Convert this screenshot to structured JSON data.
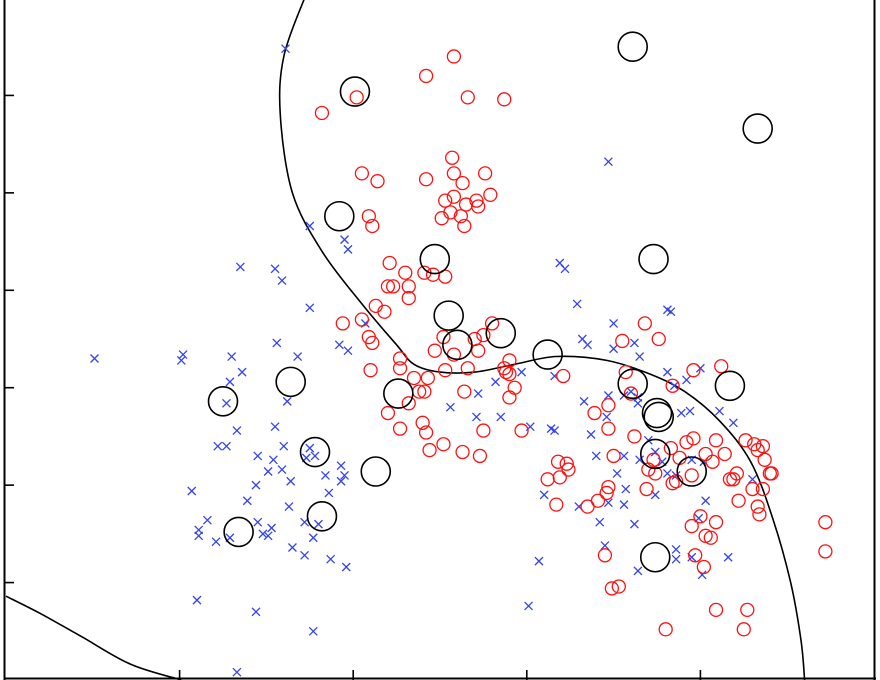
{
  "chart_data": {
    "type": "scatter",
    "title": "",
    "xlabel": "",
    "ylabel": "",
    "xlim": [
      0.0,
      5.0
    ],
    "ylim": [
      0.0,
      3.5
    ],
    "grid": false,
    "colors": {
      "class_x": "#3344ee",
      "class_o": "#ff1111",
      "support_ring": "#000000",
      "boundary": "#000000",
      "frame": "#000000"
    },
    "series": [
      {
        "marker": "x",
        "points": [
          [
            0.51,
            1.65
          ],
          [
            1.02,
            1.67
          ],
          [
            1.01,
            1.64
          ],
          [
            1.3,
            1.66
          ],
          [
            1.29,
            1.53
          ],
          [
            1.36,
            1.58
          ],
          [
            1.27,
            1.42
          ],
          [
            1.33,
            1.28
          ],
          [
            1.35,
            2.12
          ],
          [
            1.55,
            2.11
          ],
          [
            1.56,
            1.73
          ],
          [
            1.68,
            1.66
          ],
          [
            1.59,
            2.05
          ],
          [
            1.75,
            1.91
          ],
          [
            1.62,
            1.43
          ],
          [
            1.55,
            1.3
          ],
          [
            1.6,
            1.2
          ],
          [
            1.22,
            1.2
          ],
          [
            1.27,
            1.2
          ],
          [
            1.45,
            1.15
          ],
          [
            1.54,
            1.13
          ],
          [
            1.51,
            1.07
          ],
          [
            1.44,
            1.0
          ],
          [
            1.59,
            1.08
          ],
          [
            1.64,
            1.02
          ],
          [
            1.78,
            1.15
          ],
          [
            1.75,
            1.19
          ],
          [
            1.73,
            1.14
          ],
          [
            1.84,
            1.05
          ],
          [
            1.93,
            1.1
          ],
          [
            1.93,
            1.02
          ],
          [
            1.95,
            1.05
          ],
          [
            1.07,
            0.97
          ],
          [
            1.16,
            0.82
          ],
          [
            1.11,
            0.77
          ],
          [
            1.11,
            0.74
          ],
          [
            1.45,
            0.81
          ],
          [
            1.51,
            0.74
          ],
          [
            1.48,
            0.75
          ],
          [
            1.29,
            0.73
          ],
          [
            1.21,
            0.71
          ],
          [
            1.39,
            0.92
          ],
          [
            1.53,
            0.78
          ],
          [
            1.63,
            0.89
          ],
          [
            1.72,
            0.81
          ],
          [
            1.77,
            0.73
          ],
          [
            1.86,
            0.96
          ],
          [
            1.8,
            0.8
          ],
          [
            1.87,
            0.62
          ],
          [
            1.72,
            0.64
          ],
          [
            1.65,
            0.68
          ],
          [
            1.96,
            0.58
          ],
          [
            1.1,
            0.41
          ],
          [
            1.44,
            0.35
          ],
          [
            1.77,
            0.25
          ],
          [
            1.33,
            0.04
          ],
          [
            1.61,
            3.24
          ],
          [
            1.75,
            2.33
          ],
          [
            1.95,
            2.26
          ],
          [
            1.97,
            2.21
          ],
          [
            1.92,
            1.72
          ],
          [
            1.97,
            1.69
          ],
          [
            2.07,
            1.83
          ],
          [
            2.72,
            1.47
          ],
          [
            2.85,
            1.35
          ],
          [
            2.82,
            1.53
          ],
          [
            2.97,
            1.58
          ],
          [
            3.16,
            1.56
          ],
          [
            3.02,
            1.3
          ],
          [
            3.16,
            1.28
          ],
          [
            3.14,
            1.29
          ],
          [
            3.33,
            1.43
          ],
          [
            3.37,
            1.26
          ],
          [
            3.19,
            2.14
          ],
          [
            3.29,
            1.93
          ],
          [
            3.22,
            2.11
          ],
          [
            3.32,
            1.75
          ],
          [
            3.35,
            1.72
          ],
          [
            3.5,
            1.7
          ],
          [
            3.47,
            2.66
          ],
          [
            3.5,
            1.83
          ],
          [
            3.62,
            1.73
          ],
          [
            3.65,
            1.66
          ],
          [
            3.56,
            1.46
          ],
          [
            3.6,
            1.48
          ],
          [
            3.46,
            1.35
          ],
          [
            3.4,
            1.15
          ],
          [
            3.56,
            1.15
          ],
          [
            3.52,
            1.06
          ],
          [
            3.57,
            0.98
          ],
          [
            3.47,
            0.91
          ],
          [
            3.64,
            1.42
          ],
          [
            3.64,
            1.45
          ],
          [
            3.7,
            1.23
          ],
          [
            3.74,
            1.17
          ],
          [
            3.78,
            1.12
          ],
          [
            3.65,
            1.13
          ],
          [
            3.74,
            0.95
          ],
          [
            3.81,
            1.06
          ],
          [
            3.86,
            1.05
          ],
          [
            3.95,
            1.13
          ],
          [
            4.03,
            0.92
          ],
          [
            4.02,
            1.12
          ],
          [
            3.81,
            1.58
          ],
          [
            3.85,
            1.51
          ],
          [
            3.92,
            1.54
          ],
          [
            4.0,
            1.6
          ],
          [
            3.94,
            1.38
          ],
          [
            4.11,
            1.38
          ],
          [
            4.19,
            1.32
          ],
          [
            3.1,
            0.95
          ],
          [
            3.07,
            0.61
          ],
          [
            3.3,
            0.89
          ],
          [
            3.42,
            0.81
          ],
          [
            3.47,
            1.46
          ],
          [
            3.83,
            1.89
          ],
          [
            3.81,
            1.9
          ],
          [
            3.89,
            1.37
          ],
          [
            3.62,
            0.8
          ],
          [
            3.56,
            0.9
          ],
          [
            3.99,
            0.83
          ],
          [
            4.3,
            1.03
          ],
          [
            4.16,
            0.63
          ],
          [
            4.01,
            0.54
          ],
          [
            3.86,
            0.62
          ],
          [
            3.95,
            0.63
          ],
          [
            3.86,
            0.67
          ],
          [
            3.45,
            0.69
          ],
          [
            3.64,
            0.56
          ],
          [
            3.01,
            0.38
          ],
          [
            2.71,
            1.35
          ],
          [
            2.56,
            1.4
          ]
        ]
      },
      {
        "marker": "o",
        "points": [
          [
            2.58,
            3.2
          ],
          [
            2.66,
            2.99
          ],
          [
            2.87,
            2.98
          ],
          [
            2.42,
            3.1
          ],
          [
            1.82,
            2.91
          ],
          [
            2.02,
            2.99
          ],
          [
            2.05,
            2.6
          ],
          [
            2.14,
            2.56
          ],
          [
            2.42,
            2.57
          ],
          [
            2.58,
            2.6
          ],
          [
            2.57,
            2.68
          ],
          [
            2.63,
            2.55
          ],
          [
            2.76,
            2.6
          ],
          [
            2.79,
            2.49
          ],
          [
            2.72,
            2.43
          ],
          [
            2.65,
            2.44
          ],
          [
            2.56,
            2.4
          ],
          [
            2.53,
            2.46
          ],
          [
            2.58,
            2.48
          ],
          [
            2.71,
            2.46
          ],
          [
            2.62,
            2.38
          ],
          [
            2.64,
            2.33
          ],
          [
            2.51,
            2.37
          ],
          [
            2.09,
            2.38
          ],
          [
            2.11,
            2.33
          ],
          [
            2.21,
            2.14
          ],
          [
            2.3,
            2.09
          ],
          [
            2.41,
            2.09
          ],
          [
            2.53,
            2.07
          ],
          [
            2.46,
            2.08
          ],
          [
            2.32,
            2.02
          ],
          [
            2.2,
            2.02
          ],
          [
            2.23,
            2.02
          ],
          [
            2.32,
            1.96
          ],
          [
            2.13,
            1.92
          ],
          [
            2.05,
            1.85
          ],
          [
            2.18,
            1.89
          ],
          [
            2.11,
            1.73
          ],
          [
            2.09,
            1.76
          ],
          [
            1.94,
            1.83
          ],
          [
            2.1,
            1.59
          ],
          [
            2.27,
            1.65
          ],
          [
            2.27,
            1.6
          ],
          [
            2.52,
            1.76
          ],
          [
            2.66,
            1.6
          ],
          [
            2.58,
            1.67
          ],
          [
            2.8,
            1.83
          ],
          [
            2.72,
            1.69
          ],
          [
            2.75,
            1.77
          ],
          [
            2.7,
            1.75
          ],
          [
            2.47,
            1.69
          ],
          [
            2.35,
            1.55
          ],
          [
            2.4,
            1.32
          ],
          [
            2.44,
            1.18
          ],
          [
            2.9,
            1.64
          ],
          [
            2.88,
            1.58
          ],
          [
            2.9,
            1.57
          ],
          [
            2.87,
            1.6
          ],
          [
            2.93,
            1.5
          ],
          [
            2.9,
            1.45
          ],
          [
            2.64,
            1.48
          ],
          [
            2.53,
            1.59
          ],
          [
            2.43,
            1.55
          ],
          [
            2.41,
            1.48
          ],
          [
            2.38,
            1.48
          ],
          [
            2.32,
            1.42
          ],
          [
            2.27,
            1.29
          ],
          [
            2.2,
            1.37
          ],
          [
            2.42,
            1.27
          ],
          [
            2.52,
            1.21
          ],
          [
            2.63,
            1.17
          ],
          [
            2.75,
            1.28
          ],
          [
            2.97,
            1.28
          ],
          [
            2.73,
            1.15
          ],
          [
            3.18,
            1.12
          ],
          [
            3.19,
            1.04
          ],
          [
            3.24,
            1.08
          ],
          [
            3.47,
            1.29
          ],
          [
            3.23,
            1.11
          ],
          [
            3.12,
            1.03
          ],
          [
            3.62,
            1.25
          ],
          [
            3.74,
            1.06
          ],
          [
            3.7,
            1.08
          ],
          [
            3.73,
            1.13
          ],
          [
            3.84,
            1.01
          ],
          [
            3.86,
            1.02
          ],
          [
            3.95,
            1.05
          ],
          [
            3.88,
            1.14
          ],
          [
            3.83,
            1.19
          ],
          [
            3.92,
            1.22
          ],
          [
            3.96,
            1.24
          ],
          [
            4.03,
            1.16
          ],
          [
            4.07,
            1.12
          ],
          [
            4.14,
            1.16
          ],
          [
            4.19,
            1.03
          ],
          [
            4.17,
            1.03
          ],
          [
            4.21,
            1.06
          ],
          [
            4.09,
            1.23
          ],
          [
            4.26,
            1.23
          ],
          [
            4.31,
            1.21
          ],
          [
            4.33,
            1.18
          ],
          [
            4.37,
            1.13
          ],
          [
            4.41,
            1.06
          ],
          [
            4.4,
            1.06
          ],
          [
            4.36,
            0.98
          ],
          [
            4.3,
            0.98
          ],
          [
            4.36,
            1.2
          ],
          [
            3.69,
            0.98
          ],
          [
            3.46,
            0.96
          ],
          [
            3.41,
            0.92
          ],
          [
            3.35,
            0.89
          ],
          [
            3.17,
            0.9
          ],
          [
            4.34,
            0.85
          ],
          [
            4.09,
            0.81
          ],
          [
            4.03,
            0.74
          ],
          [
            3.95,
            0.79
          ],
          [
            3.97,
            0.64
          ],
          [
            3.45,
            0.64
          ],
          [
            4.02,
            0.58
          ],
          [
            4.09,
            0.36
          ],
          [
            3.53,
            0.48
          ],
          [
            3.49,
            0.47
          ],
          [
            4.27,
            0.36
          ],
          [
            3.8,
            0.26
          ],
          [
            4.25,
            0.26
          ],
          [
            4.72,
            0.81
          ],
          [
            4.72,
            0.66
          ],
          [
            3.68,
            1.83
          ],
          [
            3.55,
            1.74
          ],
          [
            4.12,
            1.61
          ],
          [
            3.96,
            1.59
          ],
          [
            3.84,
            1.51
          ],
          [
            3.6,
            1.47
          ],
          [
            3.39,
            1.37
          ],
          [
            3.57,
            1.58
          ],
          [
            3.21,
            1.56
          ],
          [
            3.5,
            1.15
          ],
          [
            3.47,
            1.41
          ],
          [
            3.76,
            1.75
          ],
          [
            4.22,
            0.92
          ],
          [
            4.0,
            0.84
          ],
          [
            4.06,
            0.73
          ],
          [
            3.47,
            0.99
          ],
          [
            4.33,
            0.89
          ]
        ]
      }
    ],
    "support_vectors": [
      [
        2.01,
        3.02
      ],
      [
        1.92,
        2.38
      ],
      [
        2.47,
        2.16
      ],
      [
        2.55,
        1.87
      ],
      [
        2.6,
        1.72
      ],
      [
        2.85,
        1.78
      ],
      [
        3.12,
        1.67
      ],
      [
        2.26,
        1.47
      ],
      [
        1.25,
        1.43
      ],
      [
        1.64,
        1.53
      ],
      [
        3.61,
        3.25
      ],
      [
        4.33,
        2.83
      ],
      [
        3.73,
        2.16
      ],
      [
        3.61,
        1.52
      ],
      [
        3.75,
        1.37
      ],
      [
        3.76,
        1.35
      ],
      [
        4.17,
        1.51
      ],
      [
        3.74,
        1.16
      ],
      [
        3.95,
        1.07
      ],
      [
        1.78,
        1.17
      ],
      [
        2.13,
        1.07
      ],
      [
        1.82,
        0.84
      ],
      [
        1.34,
        0.76
      ],
      [
        3.74,
        0.63
      ]
    ],
    "boundaries": [
      [
        [
          1.72,
          3.5
        ],
        [
          1.6,
          3.2
        ],
        [
          1.58,
          2.9
        ],
        [
          1.65,
          2.5
        ],
        [
          1.82,
          2.2
        ],
        [
          2.05,
          1.93
        ],
        [
          2.25,
          1.72
        ],
        [
          2.35,
          1.62
        ],
        [
          2.5,
          1.58
        ],
        [
          2.7,
          1.58
        ],
        [
          2.93,
          1.62
        ],
        [
          3.17,
          1.66
        ],
        [
          3.46,
          1.64
        ],
        [
          3.71,
          1.57
        ],
        [
          3.91,
          1.48
        ],
        [
          4.11,
          1.33
        ],
        [
          4.29,
          1.12
        ],
        [
          4.42,
          0.82
        ],
        [
          4.52,
          0.5
        ],
        [
          4.58,
          0.2
        ],
        [
          4.6,
          0.0
        ]
      ],
      [
        [
          0.0,
          0.43
        ],
        [
          0.2,
          0.34
        ],
        [
          0.44,
          0.22
        ],
        [
          0.72,
          0.08
        ],
        [
          1.01,
          0.0
        ]
      ]
    ]
  }
}
